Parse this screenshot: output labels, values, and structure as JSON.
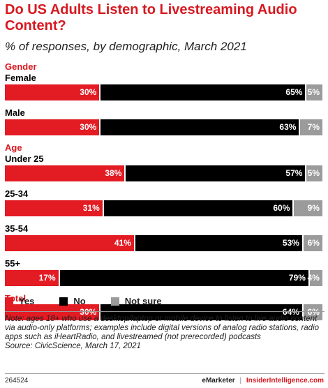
{
  "header": {
    "title": "Do US Adults Listen to Livestreaming Audio Content?",
    "subtitle": "% of responses, by demographic, March 2021"
  },
  "chart_data": {
    "type": "bar",
    "orientation": "horizontal",
    "stacked": true,
    "title": "Do US Adults Listen to Livestreaming Audio Content?",
    "subtitle": "% of responses, by demographic, March 2021",
    "groups": [
      {
        "label": "Gender",
        "rows": [
          {
            "label": "Female",
            "values": [
              30,
              65,
              5
            ],
            "texts": [
              "30%",
              "65%",
              "5%"
            ]
          },
          {
            "label": "Male",
            "values": [
              30,
              63,
              7
            ],
            "texts": [
              "30%",
              "63%",
              "7%"
            ]
          }
        ]
      },
      {
        "label": "Age",
        "rows": [
          {
            "label": "Under 25",
            "values": [
              38,
              57,
              5
            ],
            "texts": [
              "38%",
              "57%",
              "5%"
            ]
          },
          {
            "label": "25-34",
            "values": [
              31,
              60,
              9
            ],
            "texts": [
              "31%",
              "60%",
              "9%"
            ]
          },
          {
            "label": "35-54",
            "values": [
              41,
              53,
              6
            ],
            "texts": [
              "41%",
              "53%",
              "6%"
            ]
          },
          {
            "label": "55+",
            "values": [
              17,
              79,
              4
            ],
            "texts": [
              "17%",
              "79%",
              "4%"
            ]
          }
        ]
      },
      {
        "label": "Total",
        "rows": [
          {
            "label": "",
            "values": [
              30,
              64,
              6
            ],
            "texts": [
              "30%",
              "64%",
              "6%"
            ]
          }
        ]
      }
    ],
    "series": [
      {
        "name": "Yes",
        "color": "#e31b23"
      },
      {
        "name": "No",
        "color": "#000000"
      },
      {
        "name": "Not sure",
        "color": "#9b9b9b"
      }
    ],
    "legend_position": "bottom-left"
  },
  "legend": {
    "yes": "Yes",
    "no": "No",
    "not_sure": "Not sure"
  },
  "note": "Note: ages 18+ who use a desktop/laptop or mobile device to listen to live audio content via audio-only platforms; examples include digital versions of analog radio stations, radio apps such as iHeartRadio, and livestreamed (not prerecorded) podcasts",
  "source": "Source: CivicScience, March 17, 2021",
  "footer": {
    "chart_id": "264524",
    "brand_left": "eMarketer",
    "divider": "|",
    "brand_right": "InsiderIntelligence.com"
  }
}
